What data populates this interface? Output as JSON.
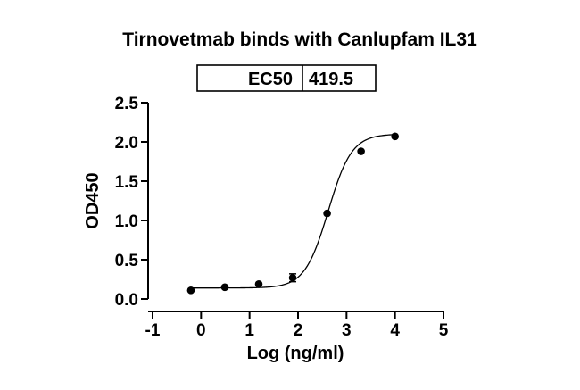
{
  "chart_data": {
    "type": "scatter",
    "title": "Tirnovetmab binds with Canlupfam IL31",
    "xlabel": "Log (ng/ml)",
    "ylabel": "OD450",
    "xlim": [
      -1,
      5
    ],
    "ylim": [
      0,
      2.5
    ],
    "xticks": [
      "-1",
      "0",
      "1",
      "2",
      "3",
      "4",
      "5"
    ],
    "yticks": [
      "0.0",
      "0.5",
      "1.0",
      "1.5",
      "2.0",
      "2.5"
    ],
    "grid": false,
    "legend": "none",
    "ec50_table": {
      "label": "EC50",
      "value": "419.5"
    },
    "series": [
      {
        "points": [
          {
            "x": -0.21,
            "y": 0.11
          },
          {
            "x": 0.49,
            "y": 0.15
          },
          {
            "x": 1.19,
            "y": 0.19
          },
          {
            "x": 1.89,
            "y": 0.27,
            "err": 0.05
          },
          {
            "x": 2.6,
            "y": 1.09
          },
          {
            "x": 3.3,
            "y": 1.88
          },
          {
            "x": 4.0,
            "y": 2.07
          }
        ],
        "fit": {
          "model": "4PL",
          "bottom": 0.14,
          "top": 2.1,
          "log_ec50": 2.623,
          "hill": 1.8,
          "x_range": [
            -0.21,
            4.0
          ]
        },
        "color": "#000000"
      }
    ]
  }
}
